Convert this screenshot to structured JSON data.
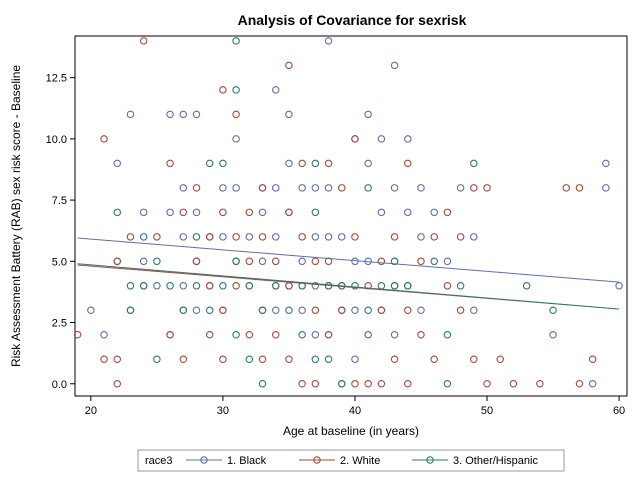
{
  "chart_data": {
    "type": "scatter",
    "title": "Analysis of Covariance for sexrisk",
    "xlabel": "Age at baseline (in years)",
    "ylabel": "Risk Assessment Battery (RAB) sex risk score - Baseline",
    "xlim": [
      18.8,
      60.6
    ],
    "ylim": [
      -0.5,
      14.2
    ],
    "x_ticks": [
      20,
      30,
      40,
      50,
      60
    ],
    "y_ticks": [
      0.0,
      2.5,
      5.0,
      7.5,
      10.0,
      12.5
    ],
    "x_tick_labels": [
      "20",
      "30",
      "40",
      "50",
      "60"
    ],
    "y_tick_labels": [
      "0.0",
      "2.5",
      "5.0",
      "7.5",
      "10.0",
      "12.5"
    ],
    "grid": false,
    "legend": {
      "title": "race3",
      "position": "bottom"
    },
    "series": [
      {
        "name": "1. Black",
        "color": "#5e6fa6",
        "line": {
          "x": [
            19,
            60
          ],
          "y": [
            5.95,
            4.15
          ]
        },
        "points": [
          [
            20,
            3
          ],
          [
            21,
            2
          ],
          [
            22,
            9
          ],
          [
            22,
            5
          ],
          [
            23,
            11
          ],
          [
            23,
            3
          ],
          [
            24,
            7
          ],
          [
            24,
            5
          ],
          [
            25,
            4
          ],
          [
            26,
            11
          ],
          [
            26,
            7
          ],
          [
            26,
            2
          ],
          [
            27,
            11
          ],
          [
            27,
            8
          ],
          [
            27,
            6
          ],
          [
            27,
            4
          ],
          [
            28,
            11
          ],
          [
            28,
            7
          ],
          [
            28,
            5
          ],
          [
            28,
            3
          ],
          [
            29,
            6
          ],
          [
            29,
            4
          ],
          [
            30,
            8
          ],
          [
            30,
            6
          ],
          [
            30,
            3
          ],
          [
            31,
            10
          ],
          [
            31,
            8
          ],
          [
            31,
            5
          ],
          [
            32,
            6
          ],
          [
            32,
            4
          ],
          [
            33,
            8
          ],
          [
            33,
            7
          ],
          [
            33,
            5
          ],
          [
            34,
            12
          ],
          [
            34,
            8
          ],
          [
            34,
            6
          ],
          [
            34,
            3
          ],
          [
            35,
            11
          ],
          [
            35,
            9
          ],
          [
            35,
            7
          ],
          [
            35,
            4
          ],
          [
            36,
            8
          ],
          [
            36,
            5
          ],
          [
            36,
            3
          ],
          [
            37,
            8
          ],
          [
            37,
            6
          ],
          [
            37,
            4
          ],
          [
            37,
            2
          ],
          [
            38,
            14
          ],
          [
            38,
            8
          ],
          [
            38,
            6
          ],
          [
            38,
            4
          ],
          [
            38,
            2
          ],
          [
            39,
            6
          ],
          [
            39,
            3
          ],
          [
            40,
            10
          ],
          [
            40,
            5
          ],
          [
            40,
            3
          ],
          [
            40,
            1
          ],
          [
            41,
            11
          ],
          [
            41,
            9
          ],
          [
            41,
            5
          ],
          [
            42,
            10
          ],
          [
            42,
            7
          ],
          [
            42,
            3
          ],
          [
            43,
            13
          ],
          [
            43,
            8
          ],
          [
            43,
            5
          ],
          [
            43,
            2
          ],
          [
            44,
            10
          ],
          [
            44,
            7
          ],
          [
            44,
            4
          ],
          [
            45,
            8
          ],
          [
            45,
            6
          ],
          [
            45,
            3
          ],
          [
            46,
            7
          ],
          [
            47,
            5
          ],
          [
            48,
            8
          ],
          [
            49,
            6
          ],
          [
            49,
            3
          ],
          [
            55,
            2
          ],
          [
            58,
            0
          ],
          [
            59,
            9
          ],
          [
            59,
            8
          ],
          [
            60,
            4
          ]
        ]
      },
      {
        "name": "2. White",
        "color": "#a24b3a",
        "line": {
          "x": [
            19,
            60
          ],
          "y": [
            4.85,
            3.05
          ]
        },
        "points": [
          [
            19,
            2
          ],
          [
            21,
            10
          ],
          [
            21,
            1
          ],
          [
            22,
            5
          ],
          [
            22,
            1
          ],
          [
            22,
            0
          ],
          [
            23,
            6
          ],
          [
            24,
            14
          ],
          [
            24,
            4
          ],
          [
            25,
            6
          ],
          [
            26,
            9
          ],
          [
            26,
            2
          ],
          [
            27,
            7
          ],
          [
            27,
            3
          ],
          [
            27,
            1
          ],
          [
            28,
            8
          ],
          [
            28,
            5
          ],
          [
            29,
            6
          ],
          [
            29,
            4
          ],
          [
            29,
            2
          ],
          [
            30,
            12
          ],
          [
            30,
            7
          ],
          [
            30,
            3
          ],
          [
            30,
            1
          ],
          [
            31,
            11
          ],
          [
            31,
            6
          ],
          [
            31,
            4
          ],
          [
            32,
            7
          ],
          [
            32,
            5
          ],
          [
            32,
            2
          ],
          [
            33,
            8
          ],
          [
            33,
            6
          ],
          [
            33,
            3
          ],
          [
            33,
            1
          ],
          [
            34,
            5
          ],
          [
            34,
            4
          ],
          [
            34,
            2
          ],
          [
            35,
            13
          ],
          [
            35,
            7
          ],
          [
            35,
            4
          ],
          [
            35,
            1
          ],
          [
            36,
            9
          ],
          [
            36,
            6
          ],
          [
            36,
            4
          ],
          [
            36,
            0
          ],
          [
            37,
            5
          ],
          [
            37,
            3
          ],
          [
            37,
            0
          ],
          [
            38,
            9
          ],
          [
            38,
            5
          ],
          [
            38,
            2
          ],
          [
            39,
            8
          ],
          [
            39,
            4
          ],
          [
            39,
            3
          ],
          [
            39,
            0
          ],
          [
            40,
            10
          ],
          [
            40,
            6
          ],
          [
            40,
            0
          ],
          [
            41,
            4
          ],
          [
            41,
            2
          ],
          [
            41,
            0
          ],
          [
            42,
            5
          ],
          [
            42,
            3
          ],
          [
            42,
            0
          ],
          [
            43,
            6
          ],
          [
            43,
            4
          ],
          [
            43,
            1
          ],
          [
            44,
            9
          ],
          [
            44,
            3
          ],
          [
            44,
            0
          ],
          [
            45,
            5
          ],
          [
            45,
            2
          ],
          [
            46,
            6
          ],
          [
            46,
            1
          ],
          [
            47,
            7
          ],
          [
            47,
            4
          ],
          [
            48,
            6
          ],
          [
            48,
            3
          ],
          [
            49,
            8
          ],
          [
            49,
            1
          ],
          [
            50,
            8
          ],
          [
            50,
            0
          ],
          [
            51,
            1
          ],
          [
            52,
            0
          ],
          [
            54,
            0
          ],
          [
            56,
            8
          ],
          [
            57,
            8
          ],
          [
            57,
            0
          ],
          [
            58,
            1
          ]
        ]
      },
      {
        "name": "3. Other/Hispanic",
        "color": "#2e7872",
        "line": {
          "x": [
            19,
            60
          ],
          "y": [
            4.9,
            3.05
          ]
        },
        "points": [
          [
            22,
            7
          ],
          [
            23,
            4
          ],
          [
            23,
            3
          ],
          [
            24,
            6
          ],
          [
            24,
            4
          ],
          [
            25,
            5
          ],
          [
            25,
            1
          ],
          [
            26,
            4
          ],
          [
            27,
            3
          ],
          [
            28,
            6
          ],
          [
            28,
            4
          ],
          [
            29,
            9
          ],
          [
            29,
            3
          ],
          [
            30,
            9
          ],
          [
            30,
            4
          ],
          [
            31,
            14
          ],
          [
            31,
            12
          ],
          [
            31,
            5
          ],
          [
            31,
            2
          ],
          [
            32,
            4
          ],
          [
            32,
            1
          ],
          [
            33,
            0
          ],
          [
            33,
            3
          ],
          [
            34,
            4
          ],
          [
            35,
            3
          ],
          [
            36,
            4
          ],
          [
            36,
            2
          ],
          [
            37,
            9
          ],
          [
            37,
            7
          ],
          [
            37,
            1
          ],
          [
            38,
            4
          ],
          [
            38,
            1
          ],
          [
            39,
            4
          ],
          [
            39,
            0
          ],
          [
            40,
            4
          ],
          [
            41,
            8
          ],
          [
            41,
            3
          ],
          [
            42,
            4
          ],
          [
            43,
            5
          ],
          [
            43,
            4
          ],
          [
            44,
            4
          ],
          [
            46,
            5
          ],
          [
            47,
            2
          ],
          [
            47,
            0
          ],
          [
            48,
            4
          ],
          [
            49,
            9
          ],
          [
            53,
            4
          ],
          [
            55,
            3
          ]
        ]
      }
    ]
  }
}
